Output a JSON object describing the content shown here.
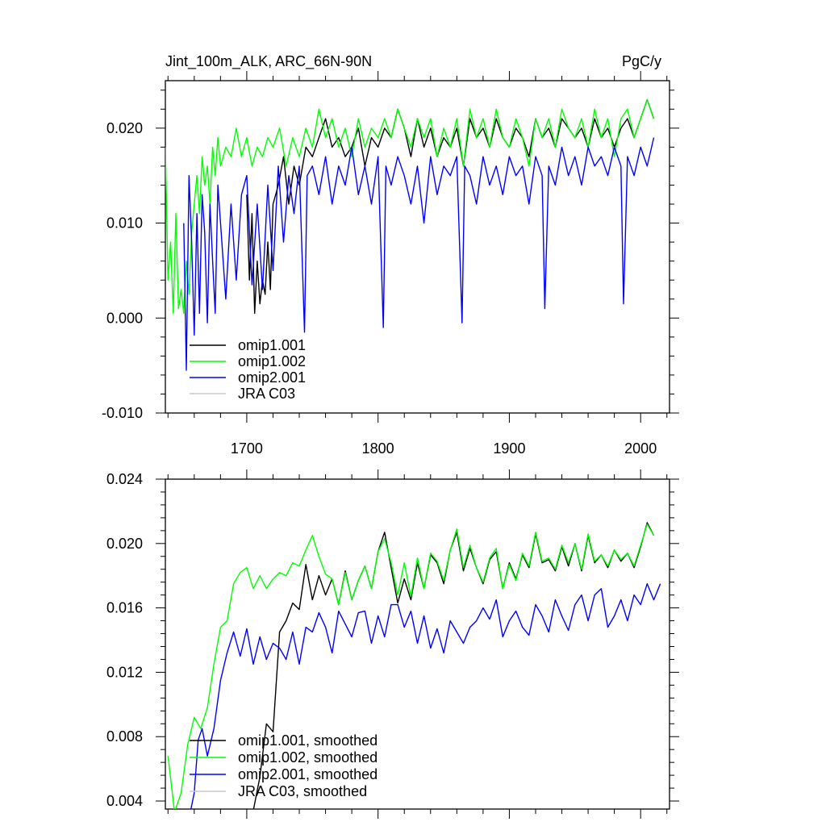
{
  "figure": {
    "top_title_left": "Jint_100m_ALK, ARC_66N-90N",
    "top_title_right": "PgC/y"
  },
  "chart_data": [
    {
      "type": "line",
      "title": "Jint_100m_ALK, ARC_66N-90N",
      "units": "PgC/y",
      "xlim": [
        1638,
        2022
      ],
      "ylim": [
        -0.01,
        0.025
      ],
      "x_ticks": [
        1700,
        1800,
        1900,
        2000
      ],
      "x_tick_labels": [
        "1700",
        "1800",
        "1900",
        "2000"
      ],
      "y_ticks": [
        -0.01,
        0.0,
        0.01,
        0.02
      ],
      "y_tick_labels": [
        "-0.010",
        "0.000",
        "0.010",
        "0.020"
      ],
      "grid": false,
      "legend_position": "bottom-left",
      "series": [
        {
          "name": "omip1.001",
          "color": "#000000",
          "x": [
            1700,
            1702,
            1704,
            1706,
            1708,
            1710,
            1712,
            1714,
            1716,
            1718,
            1720,
            1724,
            1728,
            1732,
            1736,
            1740,
            1745,
            1750,
            1755,
            1760,
            1765,
            1770,
            1775,
            1780,
            1785,
            1790,
            1795,
            1800,
            1805,
            1810,
            1815,
            1820,
            1825,
            1830,
            1835,
            1840,
            1845,
            1850,
            1855,
            1860,
            1865,
            1870,
            1875,
            1880,
            1885,
            1890,
            1895,
            1900,
            1905,
            1910,
            1915,
            1920,
            1925,
            1930,
            1935,
            1940,
            1945,
            1950,
            1955,
            1960,
            1965,
            1970,
            1975,
            1980,
            1985,
            1990,
            1995,
            2000,
            2005,
            2010
          ],
          "y": [
            0.013,
            0.004,
            0.011,
            0.0005,
            0.006,
            0.0015,
            0.004,
            0.0025,
            0.008,
            0.003,
            0.012,
            0.014,
            0.017,
            0.012,
            0.016,
            0.014,
            0.018,
            0.017,
            0.019,
            0.021,
            0.018,
            0.019,
            0.017,
            0.018,
            0.02,
            0.016,
            0.019,
            0.018,
            0.02,
            0.019,
            0.022,
            0.02,
            0.017,
            0.021,
            0.018,
            0.02,
            0.017,
            0.019,
            0.018,
            0.02,
            0.016,
            0.021,
            0.019,
            0.02,
            0.018,
            0.021,
            0.019,
            0.018,
            0.02,
            0.019,
            0.017,
            0.021,
            0.019,
            0.02,
            0.018,
            0.021,
            0.02,
            0.019,
            0.02,
            0.018,
            0.021,
            0.019,
            0.02,
            0.018,
            0.02,
            0.021,
            0.019,
            0.021,
            0.023,
            0.021
          ]
        },
        {
          "name": "omip1.002",
          "color": "#00ff00",
          "x": [
            1638,
            1640,
            1642,
            1644,
            1646,
            1648,
            1650,
            1652,
            1654,
            1656,
            1658,
            1660,
            1662,
            1664,
            1666,
            1668,
            1670,
            1672,
            1674,
            1676,
            1678,
            1680,
            1684,
            1688,
            1692,
            1696,
            1700,
            1704,
            1708,
            1712,
            1716,
            1720,
            1725,
            1730,
            1735,
            1740,
            1745,
            1750,
            1755,
            1760,
            1765,
            1770,
            1775,
            1780,
            1785,
            1790,
            1795,
            1800,
            1805,
            1810,
            1815,
            1820,
            1825,
            1830,
            1835,
            1840,
            1845,
            1850,
            1855,
            1860,
            1865,
            1870,
            1875,
            1880,
            1885,
            1890,
            1895,
            1900,
            1905,
            1910,
            1915,
            1920,
            1925,
            1930,
            1935,
            1940,
            1945,
            1950,
            1955,
            1960,
            1965,
            1970,
            1975,
            1980,
            1985,
            1990,
            1995,
            2000,
            2005,
            2010
          ],
          "y": [
            0.018,
            0.004,
            0.008,
            0.0005,
            0.011,
            0.001,
            0.003,
            0.0005,
            0.006,
            0.0025,
            0.009,
            0.012,
            0.015,
            0.011,
            0.017,
            0.014,
            0.016,
            0.012,
            0.018,
            0.015,
            0.019,
            0.016,
            0.018,
            0.017,
            0.02,
            0.017,
            0.019,
            0.016,
            0.018,
            0.017,
            0.019,
            0.018,
            0.02,
            0.016,
            0.019,
            0.017,
            0.02,
            0.018,
            0.022,
            0.019,
            0.021,
            0.018,
            0.02,
            0.017,
            0.021,
            0.018,
            0.02,
            0.019,
            0.021,
            0.019,
            0.022,
            0.02,
            0.018,
            0.021,
            0.019,
            0.021,
            0.017,
            0.02,
            0.018,
            0.021,
            0.016,
            0.022,
            0.019,
            0.021,
            0.018,
            0.022,
            0.019,
            0.018,
            0.021,
            0.019,
            0.016,
            0.021,
            0.019,
            0.021,
            0.018,
            0.022,
            0.02,
            0.019,
            0.021,
            0.018,
            0.022,
            0.019,
            0.021,
            0.017,
            0.021,
            0.022,
            0.019,
            0.021,
            0.023,
            0.021
          ]
        },
        {
          "name": "omip2.001",
          "color": "#0000ff",
          "x": [
            1652,
            1654,
            1656,
            1658,
            1660,
            1662,
            1664,
            1666,
            1668,
            1670,
            1672,
            1674,
            1676,
            1678,
            1680,
            1684,
            1688,
            1692,
            1696,
            1700,
            1704,
            1708,
            1712,
            1716,
            1720,
            1724,
            1728,
            1732,
            1736,
            1740,
            1744,
            1746,
            1750,
            1755,
            1760,
            1765,
            1770,
            1775,
            1780,
            1785,
            1790,
            1795,
            1800,
            1804,
            1806,
            1810,
            1815,
            1820,
            1825,
            1830,
            1835,
            1840,
            1845,
            1850,
            1855,
            1860,
            1864,
            1866,
            1870,
            1875,
            1880,
            1885,
            1890,
            1895,
            1900,
            1905,
            1910,
            1915,
            1920,
            1925,
            1927,
            1930,
            1935,
            1940,
            1945,
            1950,
            1955,
            1960,
            1965,
            1970,
            1975,
            1980,
            1985,
            1987,
            1990,
            1995,
            2000,
            2005,
            2010
          ],
          "y": [
            0.01,
            -0.0055,
            0.015,
            0.008,
            -0.0018,
            0.011,
            0.0005,
            0.013,
            0.009,
            -0.0005,
            0.012,
            0.006,
            0.0005,
            0.014,
            0.01,
            0.002,
            0.012,
            0.004,
            0.013,
            0.015,
            0.0035,
            0.012,
            0.003,
            0.014,
            0.005,
            0.016,
            0.008,
            0.015,
            0.011,
            0.016,
            -0.0015,
            0.015,
            0.016,
            0.013,
            0.017,
            0.012,
            0.016,
            0.014,
            0.018,
            0.013,
            0.016,
            0.012,
            0.017,
            -0.001,
            0.016,
            0.014,
            0.017,
            0.015,
            0.012,
            0.016,
            0.01,
            0.017,
            0.013,
            0.016,
            0.015,
            0.017,
            -0.0005,
            0.016,
            0.015,
            0.012,
            0.017,
            0.014,
            0.016,
            0.013,
            0.017,
            0.015,
            0.016,
            0.012,
            0.017,
            0.015,
            0.001,
            0.016,
            0.014,
            0.018,
            0.015,
            0.017,
            0.014,
            0.018,
            0.016,
            0.017,
            0.015,
            0.018,
            0.016,
            0.0015,
            0.017,
            0.015,
            0.018,
            0.016,
            0.019
          ]
        },
        {
          "name": "JRA C03",
          "color": "#c8c8c8",
          "x": [],
          "y": []
        }
      ]
    },
    {
      "type": "line",
      "xlim": [
        1638,
        2022
      ],
      "ylim": [
        0.0035,
        0.024
      ],
      "x_ticks": [
        1700,
        1800,
        1900,
        2000
      ],
      "y_ticks": [
        0.004,
        0.008,
        0.012,
        0.016,
        0.02,
        0.024
      ],
      "y_tick_labels": [
        "0.004",
        "0.008",
        "0.012",
        "0.016",
        "0.020",
        "0.024"
      ],
      "grid": false,
      "legend_position": "bottom-left",
      "series": [
        {
          "name": "omip1.001, smoothed",
          "color": "#000000",
          "x": [
            1705,
            1710,
            1715,
            1720,
            1725,
            1730,
            1735,
            1740,
            1745,
            1750,
            1755,
            1760,
            1765,
            1770,
            1775,
            1780,
            1785,
            1790,
            1795,
            1800,
            1805,
            1810,
            1815,
            1820,
            1825,
            1830,
            1835,
            1840,
            1845,
            1850,
            1855,
            1860,
            1865,
            1870,
            1875,
            1880,
            1885,
            1890,
            1895,
            1900,
            1905,
            1910,
            1915,
            1920,
            1925,
            1930,
            1935,
            1940,
            1945,
            1950,
            1955,
            1960,
            1965,
            1970,
            1975,
            1980,
            1985,
            1990,
            1995,
            2000,
            2005,
            2010
          ],
          "y": [
            0.0034,
            0.0055,
            0.0088,
            0.0083,
            0.0145,
            0.0152,
            0.0163,
            0.0159,
            0.0187,
            0.0165,
            0.018,
            0.0168,
            0.0178,
            0.0162,
            0.0183,
            0.0165,
            0.0177,
            0.0186,
            0.0172,
            0.0195,
            0.0207,
            0.0185,
            0.0163,
            0.0178,
            0.0165,
            0.0188,
            0.0172,
            0.0193,
            0.0188,
            0.0175,
            0.0196,
            0.0207,
            0.0183,
            0.0197,
            0.0185,
            0.0175,
            0.019,
            0.0195,
            0.0172,
            0.0188,
            0.0178,
            0.0193,
            0.0185,
            0.0206,
            0.0188,
            0.019,
            0.0183,
            0.0198,
            0.0186,
            0.02,
            0.0183,
            0.0205,
            0.0188,
            0.0193,
            0.0185,
            0.0196,
            0.0189,
            0.0194,
            0.0185,
            0.0198,
            0.0213,
            0.0205
          ]
        },
        {
          "name": "omip1.002, smoothed",
          "color": "#00ff00",
          "x": [
            1640,
            1645,
            1650,
            1655,
            1660,
            1665,
            1670,
            1675,
            1680,
            1685,
            1690,
            1695,
            1700,
            1705,
            1710,
            1715,
            1720,
            1725,
            1730,
            1735,
            1740,
            1745,
            1750,
            1755,
            1760,
            1765,
            1770,
            1775,
            1780,
            1785,
            1790,
            1795,
            1800,
            1805,
            1810,
            1815,
            1820,
            1825,
            1830,
            1835,
            1840,
            1845,
            1850,
            1855,
            1860,
            1865,
            1870,
            1875,
            1880,
            1885,
            1890,
            1895,
            1900,
            1905,
            1910,
            1915,
            1920,
            1925,
            1930,
            1935,
            1940,
            1945,
            1950,
            1955,
            1960,
            1965,
            1970,
            1975,
            1980,
            1985,
            1990,
            1995,
            2000,
            2005,
            2010
          ],
          "y": [
            0.0068,
            0.0033,
            0.0045,
            0.0075,
            0.0092,
            0.0085,
            0.0098,
            0.0125,
            0.0148,
            0.0152,
            0.0175,
            0.0182,
            0.0185,
            0.0172,
            0.018,
            0.0172,
            0.0178,
            0.0182,
            0.018,
            0.0188,
            0.0186,
            0.0196,
            0.0205,
            0.0192,
            0.0181,
            0.0178,
            0.0162,
            0.0182,
            0.0165,
            0.0177,
            0.0186,
            0.0172,
            0.0195,
            0.0203,
            0.0188,
            0.0168,
            0.0188,
            0.0167,
            0.0191,
            0.0172,
            0.0194,
            0.0189,
            0.0177,
            0.0196,
            0.0209,
            0.0185,
            0.0199,
            0.0185,
            0.0176,
            0.0191,
            0.0197,
            0.0172,
            0.0187,
            0.0177,
            0.0194,
            0.0186,
            0.0207,
            0.0189,
            0.0191,
            0.0184,
            0.0199,
            0.0188,
            0.02,
            0.0184,
            0.0206,
            0.0189,
            0.0193,
            0.0186,
            0.0196,
            0.019,
            0.0194,
            0.0186,
            0.0199,
            0.0212,
            0.0205
          ]
        },
        {
          "name": "omip2.001, smoothed",
          "color": "#0000ff",
          "x": [
            1657,
            1660,
            1663,
            1666,
            1670,
            1675,
            1680,
            1685,
            1690,
            1695,
            1700,
            1705,
            1710,
            1715,
            1720,
            1725,
            1730,
            1735,
            1740,
            1745,
            1750,
            1755,
            1760,
            1765,
            1770,
            1775,
            1780,
            1785,
            1790,
            1795,
            1800,
            1805,
            1810,
            1815,
            1820,
            1825,
            1830,
            1835,
            1840,
            1845,
            1850,
            1855,
            1860,
            1865,
            1870,
            1875,
            1880,
            1885,
            1890,
            1895,
            1900,
            1905,
            1910,
            1915,
            1920,
            1925,
            1930,
            1935,
            1940,
            1945,
            1950,
            1955,
            1960,
            1965,
            1970,
            1975,
            1980,
            1985,
            1990,
            1995,
            2000,
            2005,
            2010,
            2015
          ],
          "y": [
            0.0033,
            0.0045,
            0.0078,
            0.0085,
            0.0068,
            0.0085,
            0.0115,
            0.0132,
            0.0145,
            0.013,
            0.0147,
            0.0125,
            0.0142,
            0.0128,
            0.0138,
            0.0135,
            0.0128,
            0.0145,
            0.0125,
            0.0148,
            0.0145,
            0.0157,
            0.0148,
            0.0132,
            0.0158,
            0.015,
            0.0142,
            0.0157,
            0.0158,
            0.0138,
            0.0155,
            0.0142,
            0.0162,
            0.0162,
            0.0148,
            0.0158,
            0.0138,
            0.0155,
            0.0135,
            0.0147,
            0.0132,
            0.0152,
            0.0145,
            0.0138,
            0.0148,
            0.0152,
            0.016,
            0.0153,
            0.0165,
            0.0142,
            0.0152,
            0.0158,
            0.0148,
            0.0143,
            0.0162,
            0.0155,
            0.0145,
            0.0165,
            0.0155,
            0.0146,
            0.0162,
            0.0168,
            0.0152,
            0.0168,
            0.0172,
            0.0148,
            0.0155,
            0.0165,
            0.0152,
            0.0168,
            0.0162,
            0.0175,
            0.0165,
            0.0175
          ]
        },
        {
          "name": "JRA C03, smoothed",
          "color": "#c8c8c8",
          "x": [],
          "y": []
        }
      ]
    }
  ]
}
